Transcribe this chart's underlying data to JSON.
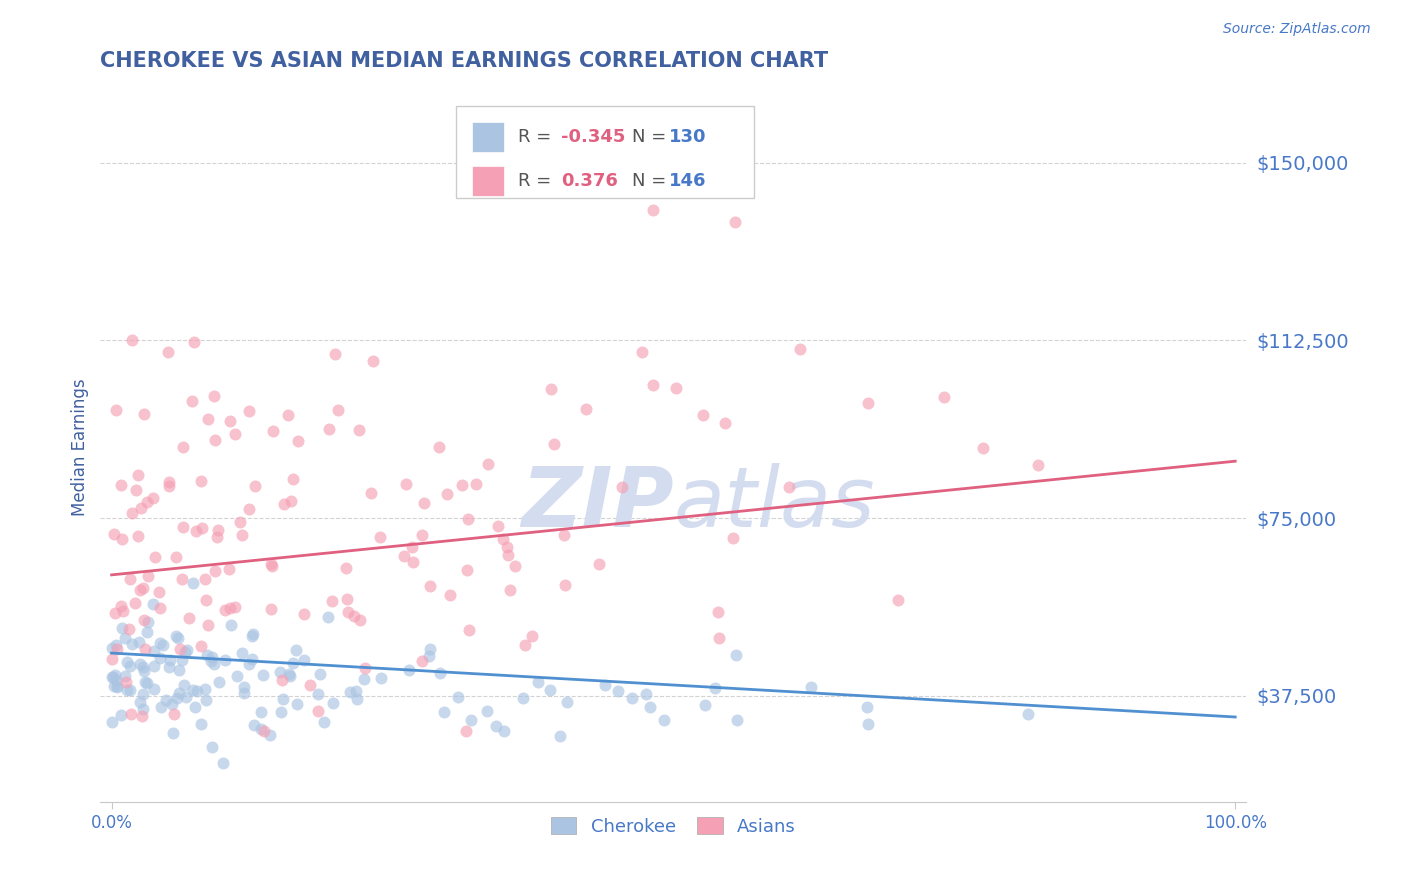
{
  "title": "CHEROKEE VS ASIAN MEDIAN EARNINGS CORRELATION CHART",
  "source": "Source: ZipAtlas.com",
  "ylabel": "Median Earnings",
  "yticks": [
    37500,
    75000,
    112500,
    150000
  ],
  "ytick_labels": [
    "$37,500",
    "$75,000",
    "$112,500",
    "$150,000"
  ],
  "ylim": [
    15000,
    165000
  ],
  "xlim": [
    -0.01,
    1.01
  ],
  "cherokee_R": -0.345,
  "cherokee_N": 130,
  "asian_R": 0.376,
  "asian_N": 146,
  "cherokee_color": "#aac4e2",
  "asian_color": "#f5a0b5",
  "cherokee_line_color": "#5090d0",
  "asian_line_color": "#e06080",
  "background_color": "#ffffff",
  "grid_color": "#c8c8c8",
  "title_color": "#4060a0",
  "axis_label_color": "#4060a0",
  "tick_label_color": "#4878c8",
  "legend_r_color": "#e06080",
  "legend_n_color": "#4878c8",
  "legend_text_color": "#555555",
  "watermark_color": "#d4ddf0",
  "dot_size": 75,
  "dot_alpha": 0.65,
  "cherokee_line_y0": 46500,
  "cherokee_line_y1": 33000,
  "asian_line_y0": 63000,
  "asian_line_y1": 87000
}
